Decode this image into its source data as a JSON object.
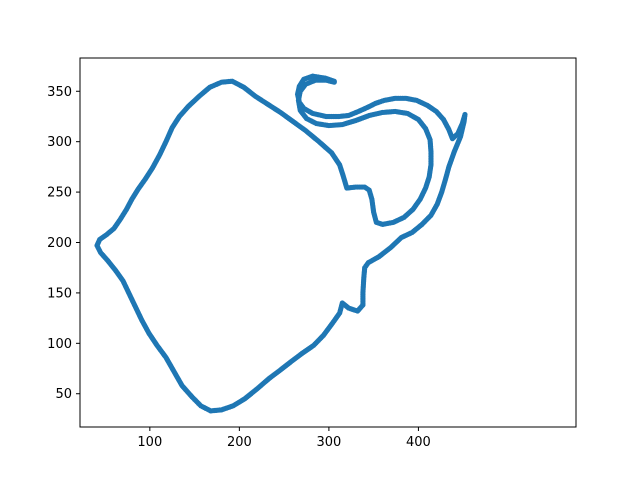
{
  "chart_data": {
    "type": "scatter",
    "title": "",
    "xlabel": "",
    "ylabel": "",
    "xlim": [
      22,
      576
    ],
    "ylim": [
      17,
      383
    ],
    "xticks": [
      100,
      200,
      300,
      400
    ],
    "yticks": [
      50,
      100,
      150,
      200,
      250,
      300,
      350
    ],
    "xtick_labels": [
      "100",
      "200",
      "300",
      "400"
    ],
    "ytick_labels": [
      "50",
      "100",
      "150",
      "200",
      "250",
      "300",
      "350"
    ],
    "grid": false,
    "legend": "none",
    "series": [
      {
        "color": "#1f77b4",
        "marker": "circle",
        "points": [
          [
            306,
            360
          ],
          [
            296,
            363
          ],
          [
            282,
            365
          ],
          [
            272,
            362
          ],
          [
            267,
            355
          ],
          [
            265,
            347
          ],
          [
            267,
            339
          ],
          [
            272,
            333
          ],
          [
            282,
            328
          ],
          [
            297,
            325
          ],
          [
            311,
            325
          ],
          [
            322,
            326
          ],
          [
            333,
            330
          ],
          [
            343,
            334
          ],
          [
            352,
            338
          ],
          [
            362,
            341
          ],
          [
            374,
            343
          ],
          [
            386,
            343
          ],
          [
            398,
            341
          ],
          [
            410,
            336
          ],
          [
            420,
            330
          ],
          [
            428,
            322
          ],
          [
            434,
            312
          ],
          [
            438,
            303
          ],
          [
            444,
            308
          ],
          [
            449,
            318
          ],
          [
            452,
            327
          ],
          [
            451,
            320
          ],
          [
            447,
            305
          ],
          [
            440,
            290
          ],
          [
            434,
            275
          ],
          [
            430,
            262
          ],
          [
            426,
            250
          ],
          [
            421,
            238
          ],
          [
            414,
            227
          ],
          [
            404,
            218
          ],
          [
            393,
            210
          ],
          [
            381,
            205
          ],
          [
            369,
            195
          ],
          [
            356,
            186
          ],
          [
            344,
            180
          ],
          [
            340,
            175
          ],
          [
            339,
            165
          ],
          [
            338,
            150
          ],
          [
            338,
            138
          ],
          [
            332,
            132
          ],
          [
            322,
            135
          ],
          [
            315,
            140
          ],
          [
            312,
            130
          ],
          [
            304,
            120
          ],
          [
            294,
            108
          ],
          [
            283,
            98
          ],
          [
            270,
            90
          ],
          [
            258,
            82
          ],
          [
            245,
            73
          ],
          [
            233,
            65
          ],
          [
            220,
            55
          ],
          [
            206,
            45
          ],
          [
            193,
            38
          ],
          [
            180,
            34
          ],
          [
            168,
            33
          ],
          [
            157,
            38
          ],
          [
            147,
            47
          ],
          [
            136,
            58
          ],
          [
            127,
            72
          ],
          [
            118,
            86
          ],
          [
            108,
            98
          ],
          [
            99,
            110
          ],
          [
            91,
            123
          ],
          [
            84,
            136
          ],
          [
            77,
            149
          ],
          [
            70,
            162
          ],
          [
            62,
            172
          ],
          [
            53,
            182
          ],
          [
            45,
            190
          ],
          [
            41,
            197
          ],
          [
            44,
            203
          ],
          [
            52,
            208
          ],
          [
            60,
            214
          ],
          [
            67,
            223
          ],
          [
            74,
            233
          ],
          [
            80,
            243
          ],
          [
            87,
            253
          ],
          [
            95,
            263
          ],
          [
            103,
            274
          ],
          [
            111,
            287
          ],
          [
            118,
            300
          ],
          [
            125,
            314
          ],
          [
            133,
            325
          ],
          [
            143,
            335
          ],
          [
            155,
            345
          ],
          [
            167,
            354
          ],
          [
            180,
            359
          ],
          [
            192,
            360
          ],
          [
            205,
            354
          ],
          [
            218,
            345
          ],
          [
            232,
            337
          ],
          [
            246,
            329
          ],
          [
            260,
            320
          ],
          [
            274,
            311
          ],
          [
            289,
            300
          ],
          [
            303,
            289
          ],
          [
            312,
            277
          ],
          [
            316,
            266
          ],
          [
            320,
            254
          ],
          [
            330,
            255
          ],
          [
            340,
            255
          ],
          [
            345,
            252
          ],
          [
            348,
            243
          ],
          [
            350,
            230
          ],
          [
            353,
            220
          ],
          [
            360,
            218
          ],
          [
            372,
            220
          ],
          [
            384,
            225
          ],
          [
            394,
            233
          ],
          [
            402,
            243
          ],
          [
            408,
            254
          ],
          [
            412,
            265
          ],
          [
            414,
            277
          ],
          [
            414,
            290
          ],
          [
            413,
            302
          ],
          [
            408,
            313
          ],
          [
            400,
            322
          ],
          [
            388,
            328
          ],
          [
            374,
            330
          ],
          [
            360,
            329
          ],
          [
            345,
            326
          ],
          [
            330,
            321
          ],
          [
            315,
            317
          ],
          [
            300,
            316
          ],
          [
            286,
            318
          ],
          [
            275,
            323
          ],
          [
            268,
            331
          ],
          [
            266,
            341
          ],
          [
            268,
            350
          ],
          [
            274,
            357
          ],
          [
            285,
            361
          ],
          [
            297,
            361
          ],
          [
            306,
            359
          ]
        ]
      }
    ]
  }
}
